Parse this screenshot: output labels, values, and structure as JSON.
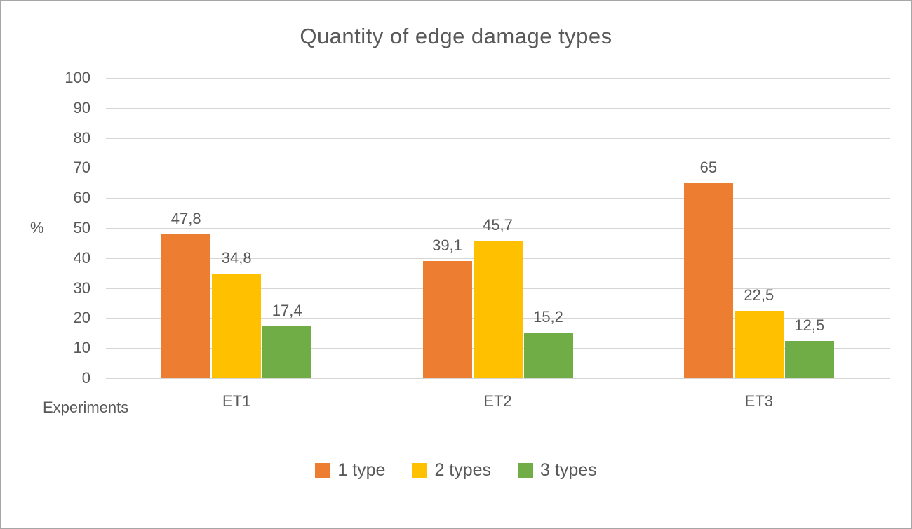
{
  "chart_data": {
    "type": "bar",
    "title": "Quantity of edge damage types",
    "ylabel": "%",
    "xlabel": "Experiments",
    "categories": [
      "ET1",
      "ET2",
      "ET3"
    ],
    "series": [
      {
        "name": "1 type",
        "color": "#ED7D31",
        "values": [
          47.8,
          39.1,
          65
        ],
        "labels": [
          "47,8",
          "39,1",
          "65"
        ]
      },
      {
        "name": "2 types",
        "color": "#FFC000",
        "values": [
          34.8,
          45.7,
          22.5
        ],
        "labels": [
          "34,8",
          "45,7",
          "22,5"
        ]
      },
      {
        "name": "3 types",
        "color": "#70AD47",
        "values": [
          17.4,
          15.2,
          12.5
        ],
        "labels": [
          "17,4",
          "15,2",
          "12,5"
        ]
      }
    ],
    "ylim": [
      0,
      100
    ],
    "ytick_step": 10,
    "grid": "horizontal",
    "legend_position": "bottom",
    "decimal_separator": ","
  }
}
